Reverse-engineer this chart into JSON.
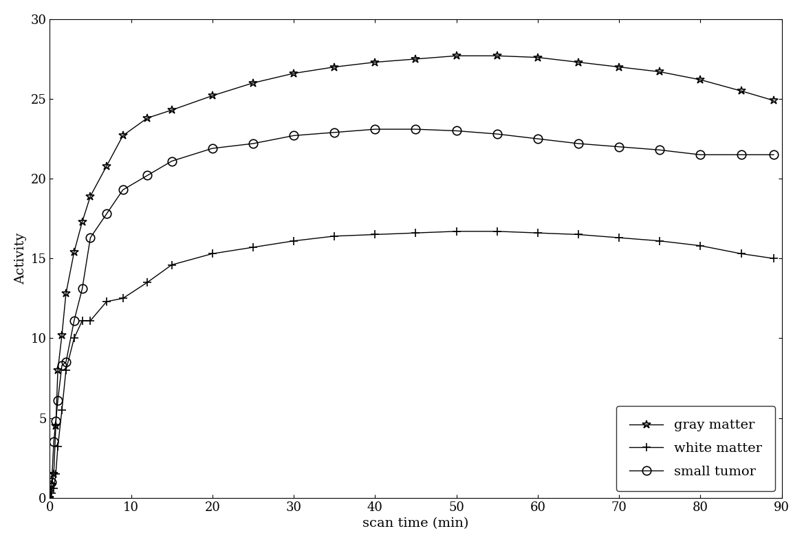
{
  "title": "",
  "xlabel": "scan time (min)",
  "ylabel": "Activity",
  "xlim": [
    0,
    90
  ],
  "ylim": [
    0,
    30
  ],
  "xticks": [
    0,
    10,
    20,
    30,
    40,
    50,
    60,
    70,
    80,
    90
  ],
  "yticks": [
    0,
    5,
    10,
    15,
    20,
    25,
    30
  ],
  "gray_matter": {
    "x": [
      0.0,
      0.25,
      0.5,
      0.75,
      1.0,
      1.5,
      2.0,
      3.0,
      4.0,
      5.0,
      7.0,
      9.0,
      12.0,
      15.0,
      20.0,
      25.0,
      30.0,
      35.0,
      40.0,
      45.0,
      50.0,
      55.0,
      60.0,
      65.0,
      70.0,
      75.0,
      80.0,
      85.0,
      89.0
    ],
    "y": [
      0.0,
      0.8,
      1.5,
      4.5,
      8.0,
      10.2,
      12.8,
      15.4,
      17.3,
      18.9,
      20.8,
      22.7,
      23.8,
      24.3,
      25.2,
      26.0,
      26.6,
      27.0,
      27.3,
      27.5,
      27.7,
      27.7,
      27.6,
      27.3,
      27.0,
      26.7,
      26.2,
      25.5,
      24.9
    ],
    "marker": "*",
    "label": "gray matter",
    "color": "#000000",
    "linewidth": 1.0,
    "markersize": 9
  },
  "white_matter": {
    "x": [
      0.0,
      0.25,
      0.5,
      0.75,
      1.0,
      1.5,
      2.0,
      3.0,
      4.0,
      5.0,
      7.0,
      9.0,
      12.0,
      15.0,
      20.0,
      25.0,
      30.0,
      35.0,
      40.0,
      45.0,
      50.0,
      55.0,
      60.0,
      65.0,
      70.0,
      75.0,
      80.0,
      85.0,
      89.0
    ],
    "y": [
      0.0,
      0.3,
      0.6,
      1.5,
      3.2,
      5.5,
      8.0,
      10.0,
      11.1,
      11.1,
      12.3,
      12.5,
      13.5,
      14.6,
      15.3,
      15.7,
      16.1,
      16.4,
      16.5,
      16.6,
      16.7,
      16.7,
      16.6,
      16.5,
      16.3,
      16.1,
      15.8,
      15.3,
      15.0
    ],
    "marker": "+",
    "label": "white matter",
    "color": "#000000",
    "linewidth": 1.0,
    "markersize": 9
  },
  "small_tumor": {
    "x": [
      0.0,
      0.25,
      0.5,
      0.75,
      1.0,
      1.5,
      2.0,
      3.0,
      4.0,
      5.0,
      7.0,
      9.0,
      12.0,
      15.0,
      20.0,
      25.0,
      30.0,
      35.0,
      40.0,
      45.0,
      50.0,
      55.0,
      60.0,
      65.0,
      70.0,
      75.0,
      80.0,
      85.0,
      89.0
    ],
    "y": [
      0.8,
      1.0,
      3.5,
      4.8,
      6.1,
      8.3,
      8.5,
      11.1,
      13.1,
      16.3,
      17.8,
      19.3,
      20.2,
      21.1,
      21.9,
      22.2,
      22.7,
      22.9,
      23.1,
      23.1,
      23.0,
      22.8,
      22.5,
      22.2,
      22.0,
      21.8,
      21.5,
      21.5,
      21.5
    ],
    "marker": "o",
    "label": "small tumor",
    "color": "#000000",
    "linewidth": 1.0,
    "markersize": 9
  },
  "legend_loc": "lower right",
  "font_size": 14,
  "tick_font_size": 13,
  "background_color": "#ffffff",
  "line_color": "#000000"
}
